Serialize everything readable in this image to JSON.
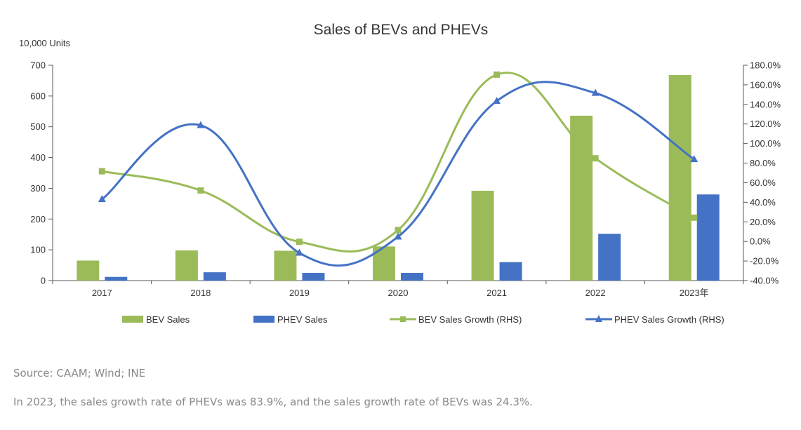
{
  "chart_data": {
    "type": "bar",
    "title": "Sales of BEVs and PHEVs",
    "ylabel_left": "10,000 Units",
    "categories": [
      "2017",
      "2018",
      "2019",
      "2020",
      "2021",
      "2022",
      "2023年"
    ],
    "ylim_left": [
      0,
      700
    ],
    "yticks_left": [
      0,
      100,
      200,
      300,
      400,
      500,
      600,
      700
    ],
    "ylim_right": [
      -40,
      180
    ],
    "yticks_right": [
      -40,
      -20,
      0,
      20,
      40,
      60,
      80,
      100,
      120,
      140,
      160,
      180
    ],
    "ytick_format_right": "percent_1dp",
    "bar_series": [
      {
        "name": "BEV Sales",
        "color": "#9bbb59",
        "values": [
          65,
          98,
          97,
          111,
          292,
          536,
          668
        ]
      },
      {
        "name": "PHEV Sales",
        "color": "#4472c4",
        "values": [
          12,
          27,
          25,
          25,
          60,
          152,
          280
        ]
      }
    ],
    "line_series": [
      {
        "name": "BEV Sales Growth (RHS)",
        "color": "#9bbb59",
        "marker": "square",
        "values": [
          71.7,
          52.0,
          -0.4,
          11.6,
          170.4,
          84.9,
          24.3
        ]
      },
      {
        "name": "PHEV Sales Growth (RHS)",
        "color": "#4472c4",
        "marker": "triangle",
        "values": [
          43.0,
          118.6,
          -11.7,
          4.8,
          143.4,
          151.6,
          83.9
        ]
      }
    ],
    "legend": [
      "BEV Sales",
      "PHEV Sales",
      "BEV Sales Growth (RHS)",
      "PHEV Sales Growth (RHS)"
    ],
    "legend_position": "bottom",
    "grid": false
  },
  "source": "Source: CAAM; Wind; INE",
  "caption": "In 2023, the sales growth rate of PHEVs was 83.9%, and the sales growth rate of BEVs was 24.3%."
}
